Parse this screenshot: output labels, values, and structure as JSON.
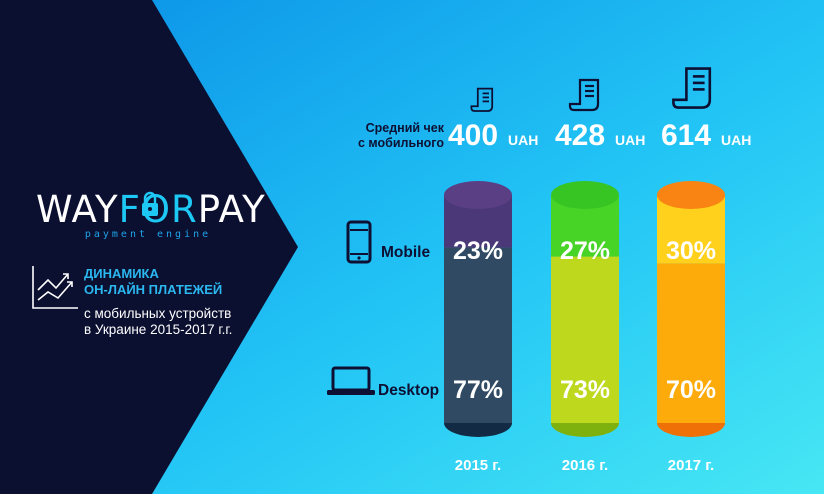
{
  "brand": {
    "name_left": "WAY",
    "name_accent": "FOR",
    "name_right": "PAY",
    "tagline": "payment engine"
  },
  "headline": {
    "title_line1": "ДИНАМИКА",
    "title_line2": "ОН-ЛАЙН ПЛАТЕЖЕЙ",
    "subtitle_line1": "с мобильных устройств",
    "subtitle_line2": "в Украине 2015-2017 г.г."
  },
  "avg_check": {
    "label_line1": "Средний чек",
    "label_line2": "с мобильного",
    "currency": "UAH"
  },
  "icons": {
    "brand_lock": "padlock-icon",
    "growth": "growth-chart-icon",
    "receipt": "receipt-icon",
    "mobile": "smartphone-icon",
    "desktop": "laptop-icon"
  },
  "row_labels": {
    "mobile": "Mobile",
    "desktop": "Desktop"
  },
  "colors": {
    "left_panel": "#0b0f30",
    "background_gradient": [
      "#0a8fe6",
      "#22c4f5",
      "#47e7f4"
    ],
    "label_dark": "#0d1033",
    "accent_blue": "#1ec8f5"
  },
  "chart_data": {
    "type": "bar",
    "stacked": true,
    "categories": [
      "2015 г.",
      "2016 г.",
      "2017 г."
    ],
    "series": [
      {
        "name": "Mobile",
        "values": [
          23,
          27,
          30
        ],
        "labels": [
          "23%",
          "27%",
          "30%"
        ]
      },
      {
        "name": "Desktop",
        "values": [
          77,
          73,
          70
        ],
        "labels": [
          "77%",
          "73%",
          "70%"
        ]
      }
    ],
    "avg_check_values": [
      "400",
      "428",
      "614"
    ],
    "column_colors": [
      {
        "mobile": "#4a3878",
        "desktop": "#2f4a62",
        "top": "#5a3f85",
        "bottom": "#132a45"
      },
      {
        "mobile": "#48d327",
        "desktop": "#bdd81d",
        "top": "#37c524",
        "bottom": "#7fb10e"
      },
      {
        "mobile": "#ffd11d",
        "desktop": "#fcab0b",
        "top": "#f98313",
        "bottom": "#ee7007"
      }
    ],
    "ylim": [
      0,
      100
    ],
    "legend": "none"
  }
}
